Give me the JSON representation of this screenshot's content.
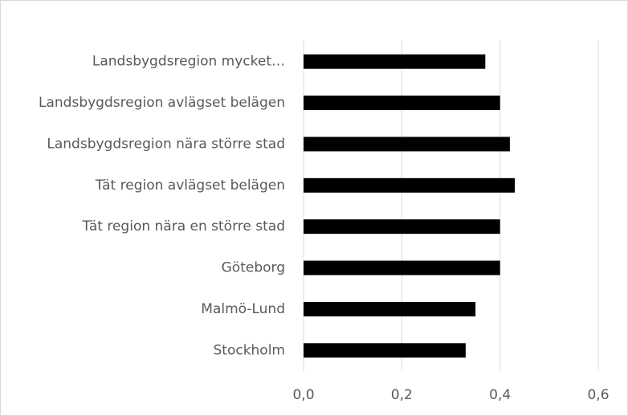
{
  "chart_data": {
    "type": "bar",
    "orientation": "horizontal",
    "categories": [
      "Landsbygdsregion mycket…",
      "Landsbygdsregion avlägset belägen",
      "Landsbygdsregion nära större stad",
      "Tät region avlägset belägen",
      "Tät region nära en större stad",
      "Göteborg",
      "Malmö-Lund",
      "Stockholm"
    ],
    "values": [
      0.37,
      0.4,
      0.42,
      0.43,
      0.4,
      0.4,
      0.35,
      0.33
    ],
    "color": "#000000",
    "xlim": [
      0,
      0.6
    ],
    "xticks": [
      {
        "value": 0,
        "label": "0,0"
      },
      {
        "value": 0.2,
        "label": "0,2"
      },
      {
        "value": 0.4,
        "label": "0,4"
      },
      {
        "value": 0.6,
        "label": "0,6"
      }
    ],
    "grid": true
  }
}
